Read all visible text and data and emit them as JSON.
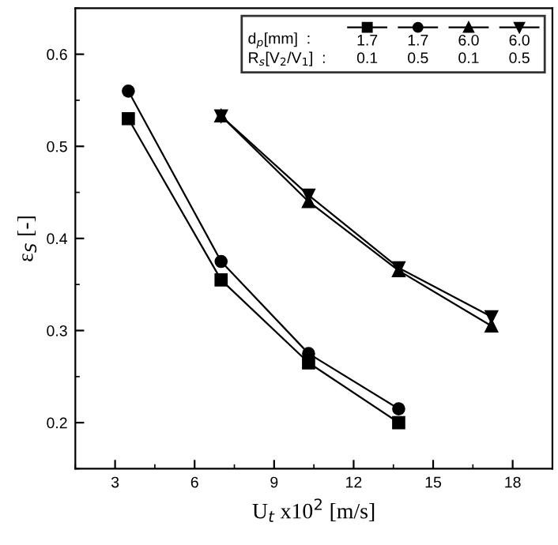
{
  "chart_data": {
    "type": "line",
    "xlabel": "U$_{t}$ x10$^{2}$ [m/s]",
    "ylabel": "ε$_{S}$ [-]",
    "legend_title": "d$_{p}$[mm]  :\nR$_{s}$[V$_{2}$/V$_{1}$]  :",
    "xlim": [
      1.5,
      19.5
    ],
    "xticks": [
      3,
      6,
      9,
      12,
      15,
      18
    ],
    "ylim": [
      0.15,
      0.65
    ],
    "yticks": [
      0.2,
      0.3,
      0.4,
      0.5,
      0.6
    ],
    "legend": "top right",
    "grid": false,
    "line_style": "solid",
    "series": [
      {
        "name": "1.7\n0.1",
        "color": "#000000",
        "marker": "square",
        "x": [
          3.5,
          7.0,
          10.3,
          13.7
        ],
        "values": [
          0.53,
          0.355,
          0.265,
          0.2
        ]
      },
      {
        "name": "1.7\n0.5",
        "color": "#000000",
        "marker": "circle",
        "x": [
          3.5,
          7.0,
          10.3,
          13.7
        ],
        "values": [
          0.56,
          0.375,
          0.275,
          0.215
        ]
      },
      {
        "name": "6.0\n0.1",
        "color": "#000000",
        "marker": "triangle",
        "x": [
          7.0,
          10.3,
          13.7,
          17.2
        ],
        "values": [
          0.533,
          0.44,
          0.365,
          0.305
        ]
      },
      {
        "name": "6.0\n0.5",
        "color": "#000000",
        "marker": "triangle-down",
        "x": [
          7.0,
          10.3,
          13.7,
          17.2
        ],
        "values": [
          0.533,
          0.447,
          0.368,
          0.315
        ]
      }
    ]
  }
}
